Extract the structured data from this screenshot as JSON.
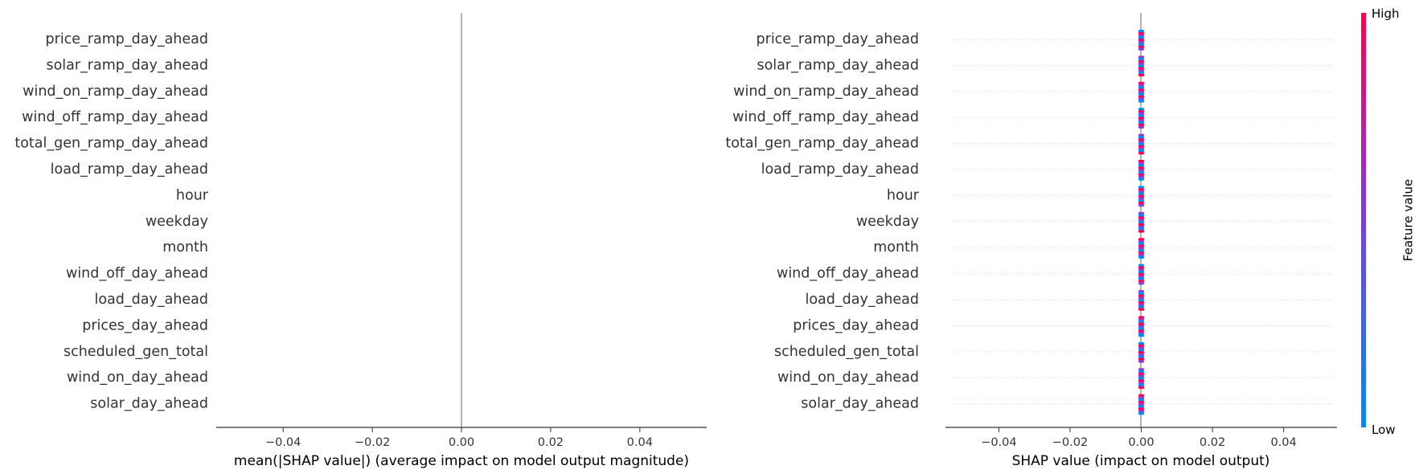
{
  "chart_data": [
    {
      "type": "bar",
      "features": [
        "price_ramp_day_ahead",
        "solar_ramp_day_ahead",
        "wind_on_ramp_day_ahead",
        "wind_off_ramp_day_ahead",
        "total_gen_ramp_day_ahead",
        "load_ramp_day_ahead",
        "hour",
        "weekday",
        "month",
        "wind_off_day_ahead",
        "load_day_ahead",
        "prices_day_ahead",
        "scheduled_gen_total",
        "wind_on_day_ahead",
        "solar_day_ahead"
      ],
      "values": [
        0,
        0,
        0,
        0,
        0,
        0,
        0,
        0,
        0,
        0,
        0,
        0,
        0,
        0,
        0
      ],
      "xlabel": "mean(|SHAP value|) (average impact on model output magnitude)",
      "xlim": [
        -0.055,
        0.055
      ],
      "xticks": [
        -0.04,
        -0.02,
        0.0,
        0.02,
        0.04
      ],
      "xtick_labels": [
        "−0.04",
        "−0.02",
        "0.00",
        "0.02",
        "0.04"
      ]
    },
    {
      "type": "scatter",
      "features": [
        "price_ramp_day_ahead",
        "solar_ramp_day_ahead",
        "wind_on_ramp_day_ahead",
        "wind_off_ramp_day_ahead",
        "total_gen_ramp_day_ahead",
        "load_ramp_day_ahead",
        "hour",
        "weekday",
        "month",
        "wind_off_day_ahead",
        "load_day_ahead",
        "prices_day_ahead",
        "scheduled_gen_total",
        "wind_on_day_ahead",
        "solar_day_ahead"
      ],
      "shap_value": 0.0,
      "xlabel": "SHAP value (impact on model output)",
      "xlim": [
        -0.055,
        0.055
      ],
      "xticks": [
        -0.04,
        -0.02,
        0.0,
        0.02,
        0.04
      ],
      "xtick_labels": [
        "−0.04",
        "−0.02",
        "0.00",
        "0.02",
        "0.04"
      ],
      "colorbar": {
        "label": "Feature value",
        "high": "High",
        "low": "Low"
      },
      "colors": {
        "low": "#008bfb",
        "high": "#ff0052",
        "mid": "#8a3fd1"
      },
      "grid": "horizontal dotted"
    }
  ]
}
